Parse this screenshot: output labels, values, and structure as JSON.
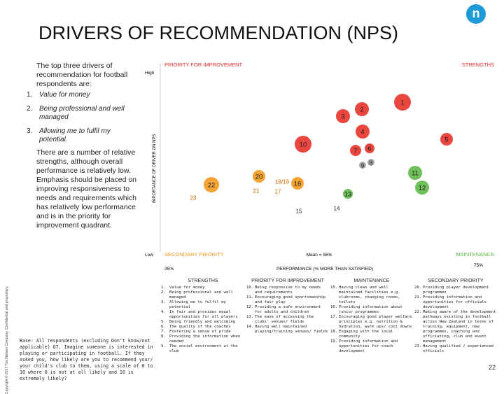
{
  "header": {
    "title": "DRIVERS OF RECOMMENDATION (NPS)",
    "page_number": "22",
    "copyright": "Copyright © 2017 The Nielsen Company. Confidential and proprietary."
  },
  "left": {
    "intro": "The top three drivers of recommendation for football respondents are:",
    "items": [
      {
        "num": "1.",
        "text": "Value for money"
      },
      {
        "num": "2.",
        "text": "Being professional and well managed"
      },
      {
        "num": "3.",
        "text": "Allowing me to fulfil my potential."
      }
    ],
    "body": "There are a number of relative strengths, although overall performance is relatively low. Emphasis should be placed on improving responsiveness to needs and requirements which has relatively low performance and is in the priority for improvement quadrant."
  },
  "chart": {
    "y_axis_title": "IMPORTANCE OF DRIVER ON NPS",
    "y_high": "High",
    "y_low": "Low",
    "x_axis_title": "PERFORMANCE (% MORE THAN SATISFIED)",
    "x_min": "35%",
    "x_max": "75%",
    "mean": "Mean = 56%",
    "quadrants": {
      "top_left": "PRIORITY FOR IMPROVEMENT",
      "top_right": "STRENGTHS",
      "bottom_left": "SECONDARY PRIORITY",
      "bottom_right": "MAINTENANCE"
    },
    "bubbles": [
      {
        "label": "1",
        "color": "#e8322b"
      },
      {
        "label": "2",
        "color": "#e8322b"
      },
      {
        "label": "3",
        "color": "#e8322b"
      },
      {
        "label": "4",
        "color": "#e8322b"
      },
      {
        "label": "5",
        "color": "#e8322b"
      },
      {
        "label": "10",
        "color": "#e8322b"
      },
      {
        "label": "7",
        "color": "#e8322b"
      },
      {
        "label": "6",
        "color": "#e8322b"
      },
      {
        "label": "8",
        "color": "#9a9a9a"
      },
      {
        "label": "9",
        "color": "#9a9a9a"
      },
      {
        "label": "11",
        "color": "#5fb848"
      },
      {
        "label": "12",
        "color": "#5fb848"
      },
      {
        "label": "13",
        "color": "#5fb848"
      },
      {
        "label": "14",
        "color": "#5fb848"
      },
      {
        "label": "15",
        "color": "#5fb848"
      },
      {
        "label": "16",
        "color": "#f39a1f"
      },
      {
        "label": "17",
        "color": "#f39a1f"
      },
      {
        "label": "18/19",
        "color": "#f39a1f"
      },
      {
        "label": "20",
        "color": "#f39a1f"
      },
      {
        "label": "21",
        "color": "#f39a1f"
      },
      {
        "label": "22",
        "color": "#f39a1f"
      },
      {
        "label": "23",
        "color": "#f39a1f"
      }
    ]
  },
  "legend": [
    {
      "heading": "STRENGTHS",
      "items": [
        {
          "num": "1.",
          "text": "Value for money"
        },
        {
          "num": "2.",
          "text": "Being professional and well managed"
        },
        {
          "num": "3.",
          "text": "Allowing me to fulfil my potential"
        },
        {
          "num": "4.",
          "text": "Is fair and provides equal opportunities for all players"
        },
        {
          "num": "5.",
          "text": "Being friendly and welcoming"
        },
        {
          "num": "6.",
          "text": "The quality of the coaches"
        },
        {
          "num": "7.",
          "text": "Fostering a sense of pride"
        },
        {
          "num": "8.",
          "text": "Providing the information when needed"
        },
        {
          "num": "9.",
          "text": "The social environment at the club"
        }
      ]
    },
    {
      "heading": "PRIORITY FOR IMPROVEMENT",
      "items": [
        {
          "num": "10.",
          "text": "Being responsive to my needs and requirements"
        },
        {
          "num": "11.",
          "text": "Encouraging good sportsmanship and fair play"
        },
        {
          "num": "12.",
          "text": "Providing a safe environment for adults and children"
        },
        {
          "num": "13.",
          "text": "The ease of accessing the clubs' venues/ fields"
        },
        {
          "num": "14.",
          "text": "Having well maintained playing/training venues/ fields"
        }
      ]
    },
    {
      "heading": "MAINTENANCE",
      "items": [
        {
          "num": "15.",
          "text": "Having clean and well maintained facilities e.g. clubrooms, changing rooms, toilets"
        },
        {
          "num": "16.",
          "text": "Providing information about junior programmes"
        },
        {
          "num": "17.",
          "text": "Encouraging good player welfare principles e.g. nutrition & hydration, warm ups/ cool downs"
        },
        {
          "num": "18.",
          "text": "Engaging with the local community"
        },
        {
          "num": "19.",
          "text": "Providing information and opportunities for coach development"
        }
      ]
    },
    {
      "heading": "SECONDARY PRIORITY",
      "items": [
        {
          "num": "20.",
          "text": "Providing player development programmes"
        },
        {
          "num": "21.",
          "text": "Providing information and opportunities for officials development"
        },
        {
          "num": "22.",
          "text": "Making aware of the development pathways existing in football across New Zealand in terms of training, equipment, new programmes, coaching and officiating, club and event management"
        },
        {
          "num": "23.",
          "text": "Having qualified / experienced officials"
        }
      ]
    }
  ],
  "base_note": "Base: All respondents (excluding Don't know/not applicable) Q7. Imagine someone is interested in playing or participating in football. If they asked you, how likely are you to recommend your/ your child's club to them, using a scale of 0 to 10 where 0 is not at all likely and 10 is extremely likely?"
}
